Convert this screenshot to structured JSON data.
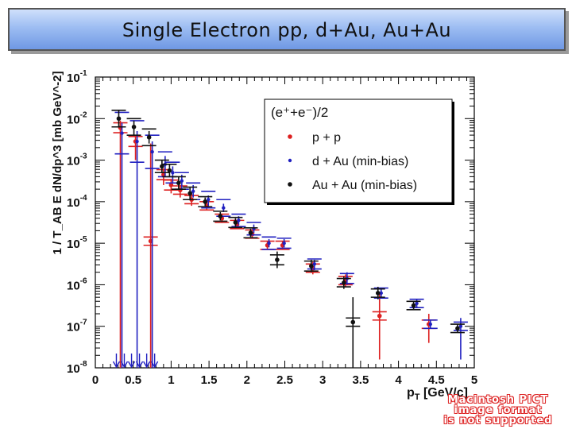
{
  "slide": {
    "title": "Single Electron pp, d+Au, Au+Au"
  },
  "watermark": {
    "lines": [
      "Macintosh PICT",
      "image format",
      "is not supported"
    ],
    "color": "#dd2222"
  },
  "chart_data": {
    "type": "scatter",
    "title": "",
    "xlabel_main": "p",
    "xlabel_sub": "T",
    "xlabel_rest": "[GeV/c]",
    "ylabel": "1 / T_AB E dN/dp^3 [mb GeV^-2]",
    "xlim": [
      0,
      5
    ],
    "ylim_log10": [
      -8,
      -1
    ],
    "yscale": "log",
    "x_ticks": [
      "0",
      "0.5",
      "1",
      "1.5",
      "2",
      "2.5",
      "3",
      "3.5",
      "4",
      "4.5",
      "5"
    ],
    "x_tick_values": [
      0,
      0.5,
      1,
      1.5,
      2,
      2.5,
      3,
      3.5,
      4,
      4.5,
      5
    ],
    "y_tick_exponents": [
      -1,
      -2,
      -3,
      -4,
      -5,
      -6,
      -7,
      -8
    ],
    "legend": {
      "placement": "top-right",
      "header": "(e⁺+e⁻)/2",
      "entries": [
        "p + p",
        "d + Au (min-bias)",
        "Au + Au (min-bias)"
      ]
    },
    "series": [
      {
        "name": "p + p",
        "color": "#dd2020",
        "points": [
          {
            "x": 0.33,
            "log10y": -2.22,
            "lo": -8.0,
            "hi": -2.05,
            "sys": 0.12
          },
          {
            "x": 0.53,
            "log10y": -2.55,
            "lo": -3.0,
            "hi": -2.4,
            "sys": 0.12
          },
          {
            "x": 0.73,
            "log10y": -4.95,
            "lo": -8.0,
            "hi": -2.6,
            "sys": 0.1
          },
          {
            "x": 0.9,
            "log10y": -3.35,
            "lo": -3.6,
            "hi": -3.2,
            "sys": 0.12
          },
          {
            "x": 1.0,
            "log10y": -3.6,
            "lo": -3.8,
            "hi": -3.45,
            "sys": 0.12
          },
          {
            "x": 1.12,
            "log10y": -3.72,
            "lo": -3.9,
            "hi": -3.6,
            "sys": 0.1
          },
          {
            "x": 1.27,
            "log10y": -3.95,
            "lo": -4.1,
            "hi": -3.8,
            "sys": 0.1
          },
          {
            "x": 1.47,
            "log10y": -4.1,
            "lo": -4.2,
            "hi": -4.0,
            "sys": 0.1
          },
          {
            "x": 1.67,
            "log10y": -4.4,
            "lo": -4.5,
            "hi": -4.3,
            "sys": 0.1
          },
          {
            "x": 1.87,
            "log10y": -4.55,
            "lo": -4.65,
            "hi": -4.45,
            "sys": 0.1
          },
          {
            "x": 2.07,
            "log10y": -4.78,
            "lo": -4.88,
            "hi": -4.68,
            "sys": 0.1
          },
          {
            "x": 2.27,
            "log10y": -5.05,
            "lo": -5.15,
            "hi": -4.95,
            "sys": 0.1
          },
          {
            "x": 2.47,
            "log10y": -5.05,
            "lo": -5.15,
            "hi": -4.95,
            "sys": 0.1
          },
          {
            "x": 2.87,
            "log10y": -5.6,
            "lo": -5.75,
            "hi": -5.45,
            "sys": 0.1
          },
          {
            "x": 3.3,
            "log10y": -5.9,
            "lo": -6.05,
            "hi": -5.75,
            "sys": 0.1
          },
          {
            "x": 3.75,
            "log10y": -6.75,
            "lo": -7.8,
            "hi": -6.2,
            "sys": 0.1
          },
          {
            "x": 4.4,
            "log10y": -6.95,
            "lo": -7.4,
            "hi": -6.7,
            "sys": 0.1
          }
        ]
      },
      {
        "name": "d + Au (min-bias)",
        "color": "#2020c0",
        "points": [
          {
            "x": 0.33,
            "log10y": -2.35,
            "lo": -8.0,
            "hi": -2.1,
            "sys": 0.5
          },
          {
            "x": 0.53,
            "log10y": -2.55,
            "lo": -8.0,
            "hi": -2.3,
            "sys": 0.5
          },
          {
            "x": 0.73,
            "log10y": -2.8,
            "lo": -8.0,
            "hi": -2.55,
            "sys": 0.4
          },
          {
            "x": 0.9,
            "log10y": -3.1,
            "lo": -3.4,
            "hi": -2.9,
            "sys": 0.3
          },
          {
            "x": 1.0,
            "log10y": -3.3,
            "lo": -3.55,
            "hi": -3.15,
            "sys": 0.25
          },
          {
            "x": 1.12,
            "log10y": -3.5,
            "lo": -3.7,
            "hi": -3.35,
            "sys": 0.2
          },
          {
            "x": 1.27,
            "log10y": -3.75,
            "lo": -3.9,
            "hi": -3.6,
            "sys": 0.2
          },
          {
            "x": 1.47,
            "log10y": -3.95,
            "lo": -4.1,
            "hi": -3.85,
            "sys": 0.2
          },
          {
            "x": 1.67,
            "log10y": -4.15,
            "lo": -4.25,
            "hi": -4.05,
            "sys": 0.2
          },
          {
            "x": 1.87,
            "log10y": -4.45,
            "lo": -4.55,
            "hi": -4.35,
            "sys": 0.15
          },
          {
            "x": 2.07,
            "log10y": -4.65,
            "lo": -4.75,
            "hi": -4.55,
            "sys": 0.15
          },
          {
            "x": 2.27,
            "log10y": -5.0,
            "lo": -5.1,
            "hi": -4.9,
            "sys": 0.15
          },
          {
            "x": 2.47,
            "log10y": -5.0,
            "lo": -5.1,
            "hi": -4.9,
            "sys": 0.12
          },
          {
            "x": 2.87,
            "log10y": -5.5,
            "lo": -5.65,
            "hi": -5.4,
            "sys": 0.12
          },
          {
            "x": 3.3,
            "log10y": -5.85,
            "lo": -6.0,
            "hi": -5.7,
            "sys": 0.12
          },
          {
            "x": 3.75,
            "log10y": -6.2,
            "lo": -6.3,
            "hi": -6.1,
            "sys": 0.12
          },
          {
            "x": 4.22,
            "log10y": -6.45,
            "lo": -6.55,
            "hi": -6.35,
            "sys": 0.1
          },
          {
            "x": 4.4,
            "log10y": -6.95,
            "lo": -7.05,
            "hi": -6.85,
            "sys": 0.1
          },
          {
            "x": 4.8,
            "log10y": -7.0,
            "lo": -7.8,
            "hi": -6.8,
            "sys": 0.1
          }
        ]
      },
      {
        "name": "Au + Au (min-bias)",
        "color": "#111111",
        "points": [
          {
            "x": 0.33,
            "log10y": -2.0,
            "lo": -2.2,
            "hi": -1.8,
            "sys": 0.2
          },
          {
            "x": 0.53,
            "log10y": -2.2,
            "lo": -2.4,
            "hi": -2.05,
            "sys": 0.2
          },
          {
            "x": 0.73,
            "log10y": -2.45,
            "lo": -2.6,
            "hi": -2.3,
            "sys": 0.2
          },
          {
            "x": 0.9,
            "log10y": -3.15,
            "lo": -3.3,
            "hi": -3.0,
            "sys": 0.15
          },
          {
            "x": 1.0,
            "log10y": -3.25,
            "lo": -3.4,
            "hi": -3.1,
            "sys": 0.15
          },
          {
            "x": 1.12,
            "log10y": -3.55,
            "lo": -3.7,
            "hi": -3.4,
            "sys": 0.15
          },
          {
            "x": 1.27,
            "log10y": -3.8,
            "lo": -3.95,
            "hi": -3.65,
            "sys": 0.15
          },
          {
            "x": 1.47,
            "log10y": -4.0,
            "lo": -4.1,
            "hi": -3.9,
            "sys": 0.12
          },
          {
            "x": 1.67,
            "log10y": -4.35,
            "lo": -4.45,
            "hi": -4.25,
            "sys": 0.12
          },
          {
            "x": 1.87,
            "log10y": -4.5,
            "lo": -4.6,
            "hi": -4.4,
            "sys": 0.12
          },
          {
            "x": 2.07,
            "log10y": -4.75,
            "lo": -4.85,
            "hi": -4.65,
            "sys": 0.12
          },
          {
            "x": 2.42,
            "log10y": -5.4,
            "lo": -5.6,
            "hi": -5.2,
            "sys": 0.12
          },
          {
            "x": 2.87,
            "log10y": -5.55,
            "lo": -5.7,
            "hi": -5.4,
            "sys": 0.12
          },
          {
            "x": 3.3,
            "log10y": -5.95,
            "lo": -6.1,
            "hi": -5.8,
            "sys": 0.1
          },
          {
            "x": 3.42,
            "log10y": -6.9,
            "lo": -8.0,
            "hi": -6.3,
            "sys": 0.1
          },
          {
            "x": 3.75,
            "log10y": -6.2,
            "lo": -6.35,
            "hi": -6.05,
            "sys": 0.1
          },
          {
            "x": 4.22,
            "log10y": -6.5,
            "lo": -6.6,
            "hi": -6.4,
            "sys": 0.1
          },
          {
            "x": 4.8,
            "log10y": -7.05,
            "lo": -7.15,
            "hi": -6.95,
            "sys": 0.1
          }
        ]
      }
    ]
  }
}
